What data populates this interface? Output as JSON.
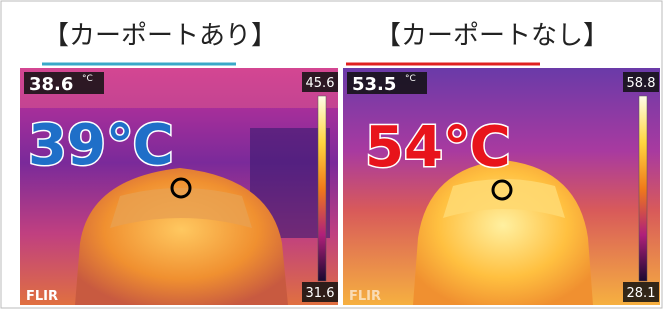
{
  "header": {
    "left": "【カーポートあり】",
    "right": "【カーポートなし】"
  },
  "panels": [
    {
      "readout": "38.6",
      "unit": "°C",
      "scale_max": "45.6",
      "scale_min": "31.6",
      "big_label": "39℃",
      "brand": "FLIR"
    },
    {
      "readout": "53.5",
      "unit": "°C",
      "scale_max": "58.8",
      "scale_min": "28.1",
      "big_label": "54℃",
      "brand": "FLIR"
    }
  ]
}
